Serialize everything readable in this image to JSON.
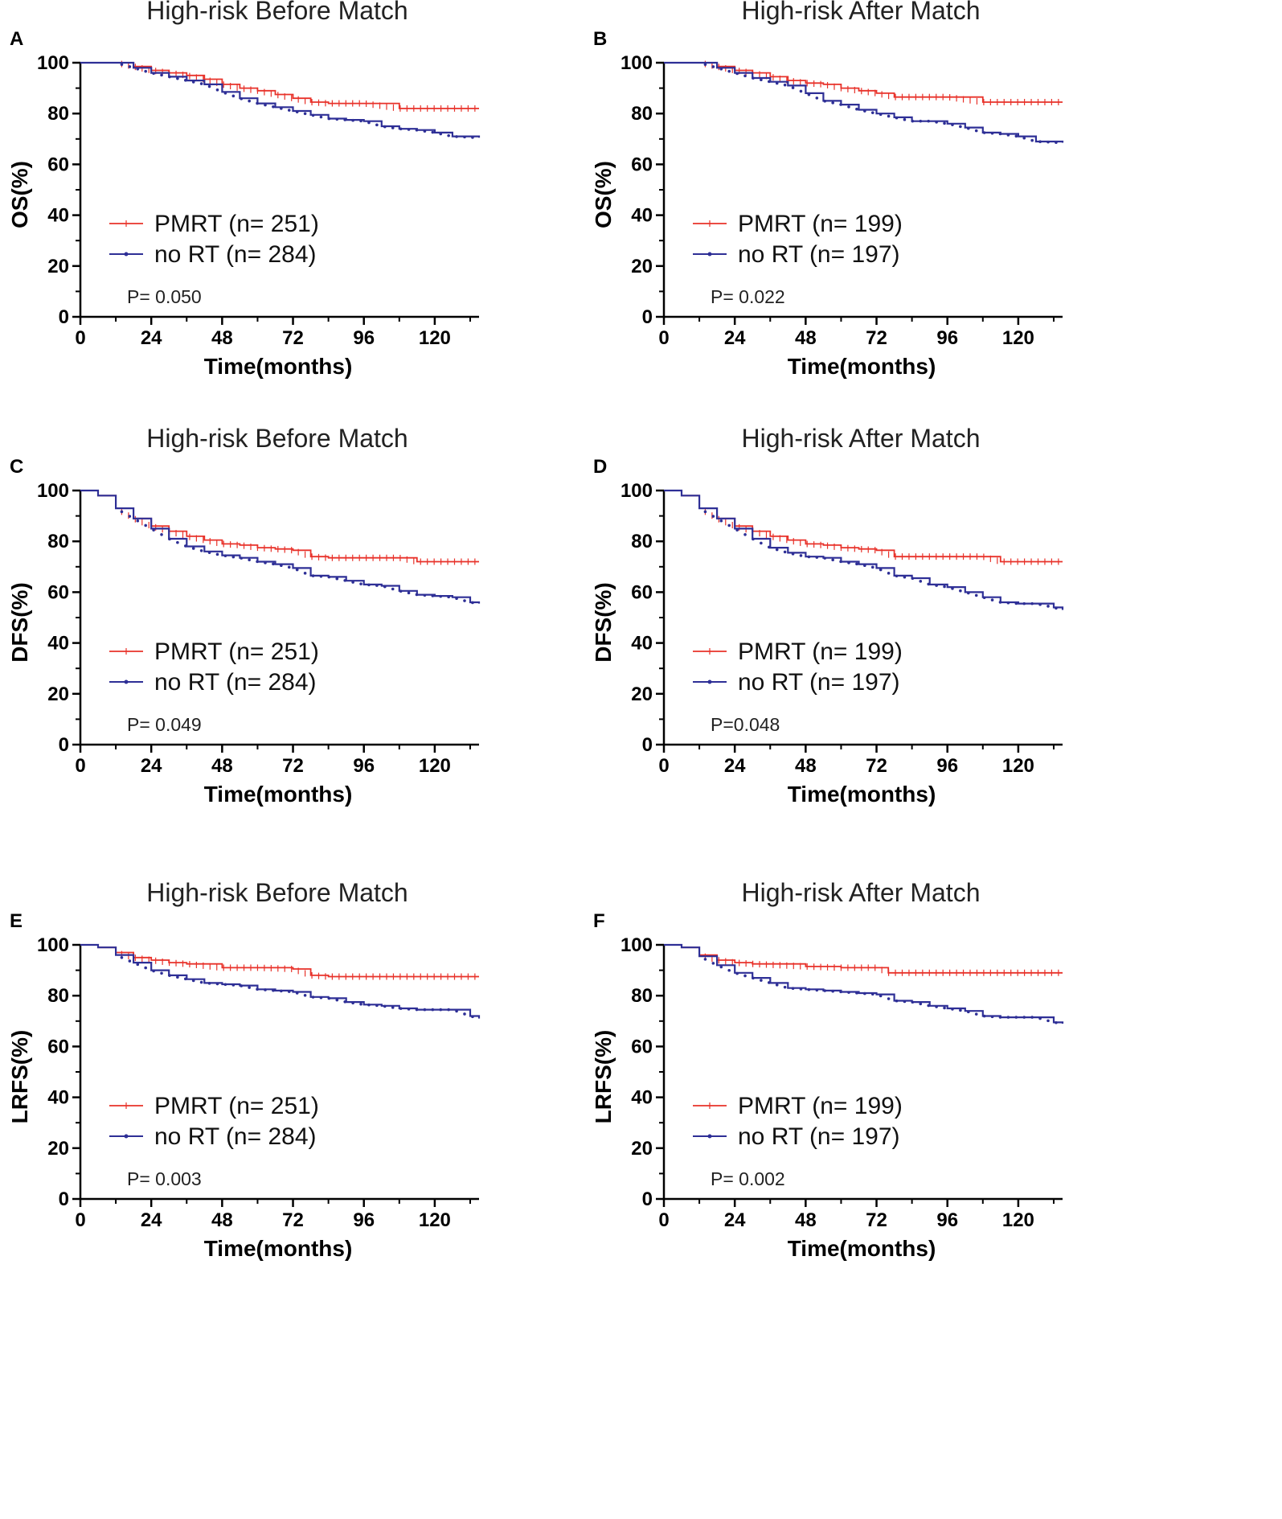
{
  "colors": {
    "pmrt": "#e8322a",
    "no_rt": "#2e2f96",
    "axis": "#000000"
  },
  "chart_data": [
    {
      "type": "line",
      "panel": "A",
      "title": "High-risk Before Match",
      "xlabel": "Time(months)",
      "ylabel": "OS(%)",
      "xlim": [
        0,
        135
      ],
      "ylim": [
        0,
        100
      ],
      "xticks": [
        "0",
        "24",
        "48",
        "72",
        "96",
        "120"
      ],
      "yticks": [
        "0",
        "20",
        "40",
        "60",
        "80",
        "100"
      ],
      "legend": {
        "pmrt": "PMRT (n= 251)",
        "no_rt": "no RT (n= 284)"
      },
      "p_value": "P= 0.050",
      "series": [
        {
          "name": "PMRT (n= 251)",
          "x": [
            0,
            12,
            18,
            24,
            30,
            36,
            42,
            48,
            54,
            60,
            66,
            72,
            78,
            84,
            96,
            108,
            135
          ],
          "y": [
            100,
            100,
            98.5,
            97,
            96,
            95,
            93.5,
            91.5,
            90,
            89,
            87.5,
            86,
            84.5,
            84,
            84,
            82,
            82
          ]
        },
        {
          "name": "no RT (n= 284)",
          "x": [
            0,
            12,
            18,
            24,
            30,
            36,
            42,
            48,
            54,
            60,
            66,
            72,
            78,
            84,
            90,
            96,
            102,
            108,
            114,
            120,
            126,
            135
          ],
          "y": [
            100,
            100,
            98,
            96,
            94.5,
            93,
            91.5,
            88.5,
            86,
            84,
            82.5,
            81,
            79.5,
            78,
            77.5,
            77,
            75,
            74,
            73.5,
            72.5,
            71,
            70.5
          ]
        }
      ]
    },
    {
      "type": "line",
      "panel": "B",
      "title": "High-risk After Match",
      "xlabel": "Time(months)",
      "ylabel": "OS(%)",
      "xlim": [
        0,
        135
      ],
      "ylim": [
        0,
        100
      ],
      "xticks": [
        "0",
        "24",
        "48",
        "72",
        "96",
        "120"
      ],
      "yticks": [
        "0",
        "20",
        "40",
        "60",
        "80",
        "100"
      ],
      "legend": {
        "pmrt": "PMRT (n= 199)",
        "no_rt": "no RT (n= 197)"
      },
      "p_value": "P= 0.022",
      "series": [
        {
          "name": "PMRT (n= 199)",
          "x": [
            0,
            12,
            18,
            24,
            30,
            36,
            42,
            48,
            54,
            60,
            66,
            72,
            78,
            96,
            108,
            135
          ],
          "y": [
            100,
            100,
            98.5,
            97,
            96,
            94.5,
            93,
            92,
            91.5,
            90,
            89,
            88,
            86.5,
            86.5,
            84.5,
            84.5
          ]
        },
        {
          "name": "no RT (n= 197)",
          "x": [
            0,
            12,
            18,
            24,
            30,
            36,
            42,
            48,
            54,
            60,
            66,
            72,
            78,
            84,
            90,
            96,
            102,
            108,
            114,
            120,
            126,
            135
          ],
          "y": [
            100,
            100,
            98,
            96,
            94,
            92.5,
            91,
            88,
            85,
            83.5,
            81.5,
            80,
            78.5,
            77,
            77,
            76,
            74.5,
            72.5,
            72,
            71,
            69,
            68.5
          ]
        }
      ]
    },
    {
      "type": "line",
      "panel": "C",
      "title": "High-risk Before Match",
      "xlabel": "Time(months)",
      "ylabel": "DFS(%)",
      "xlim": [
        0,
        135
      ],
      "ylim": [
        0,
        100
      ],
      "xticks": [
        "0",
        "24",
        "48",
        "72",
        "96",
        "120"
      ],
      "yticks": [
        "0",
        "20",
        "40",
        "60",
        "80",
        "100"
      ],
      "legend": {
        "pmrt": "PMRT (n= 251)",
        "no_rt": "no RT (n= 284)"
      },
      "p_value": "P= 0.049",
      "series": [
        {
          "name": "PMRT (n= 251)",
          "x": [
            0,
            6,
            12,
            18,
            24,
            30,
            36,
            42,
            48,
            54,
            60,
            66,
            72,
            78,
            84,
            96,
            108,
            114,
            135
          ],
          "y": [
            100,
            98,
            93,
            89,
            86,
            84,
            82,
            80.5,
            79,
            78.5,
            77.5,
            77,
            76.5,
            74,
            73.5,
            73.5,
            73.5,
            72,
            72
          ]
        },
        {
          "name": "no RT (n= 284)",
          "x": [
            0,
            6,
            12,
            18,
            24,
            30,
            36,
            42,
            48,
            54,
            60,
            66,
            72,
            78,
            84,
            90,
            96,
            102,
            108,
            114,
            120,
            126,
            132,
            135
          ],
          "y": [
            100,
            98,
            93,
            89,
            85,
            81,
            78,
            76,
            74.5,
            73.5,
            72,
            71,
            69.5,
            66.5,
            66,
            64.5,
            63,
            62.5,
            60.5,
            59,
            58.5,
            58,
            56,
            55.5
          ]
        }
      ]
    },
    {
      "type": "line",
      "panel": "D",
      "title": "High-risk After Match",
      "xlabel": "Time(months)",
      "ylabel": "DFS(%)",
      "xlim": [
        0,
        135
      ],
      "ylim": [
        0,
        100
      ],
      "xticks": [
        "0",
        "24",
        "48",
        "72",
        "96",
        "120"
      ],
      "yticks": [
        "0",
        "20",
        "40",
        "60",
        "80",
        "100"
      ],
      "legend": {
        "pmrt": "PMRT (n= 199)",
        "no_rt": "no RT (n= 197)"
      },
      "p_value": "P=0.048",
      "series": [
        {
          "name": "PMRT (n= 199)",
          "x": [
            0,
            6,
            12,
            18,
            24,
            30,
            36,
            42,
            48,
            54,
            60,
            66,
            72,
            78,
            84,
            96,
            108,
            114,
            135
          ],
          "y": [
            100,
            98,
            93,
            89,
            86,
            84,
            82,
            80.5,
            79,
            78.5,
            77.5,
            77,
            76.5,
            74,
            74,
            74,
            74,
            72,
            72
          ]
        },
        {
          "name": "no RT (n= 197)",
          "x": [
            0,
            6,
            12,
            18,
            24,
            30,
            36,
            42,
            48,
            54,
            60,
            66,
            72,
            78,
            84,
            90,
            96,
            102,
            108,
            114,
            120,
            126,
            132,
            135
          ],
          "y": [
            100,
            98,
            93,
            89,
            85,
            81,
            77.5,
            75.5,
            74,
            73.5,
            72,
            71,
            69.5,
            66.5,
            65.5,
            63,
            62,
            60,
            58,
            56,
            55.5,
            55.5,
            54,
            53
          ]
        }
      ]
    },
    {
      "type": "line",
      "panel": "E",
      "title": "High-risk Before Match",
      "xlabel": "Time(months)",
      "ylabel": "LRFS(%)",
      "xlim": [
        0,
        135
      ],
      "ylim": [
        0,
        100
      ],
      "xticks": [
        "0",
        "24",
        "48",
        "72",
        "96",
        "120"
      ],
      "yticks": [
        "0",
        "20",
        "40",
        "60",
        "80",
        "100"
      ],
      "legend": {
        "pmrt": "PMRT (n= 251)",
        "no_rt": "no RT (n= 284)"
      },
      "p_value": "P= 0.003",
      "series": [
        {
          "name": "PMRT (n= 251)",
          "x": [
            0,
            6,
            12,
            18,
            24,
            30,
            36,
            48,
            60,
            72,
            78,
            84,
            96,
            108,
            120,
            135
          ],
          "y": [
            100,
            99,
            97,
            95,
            94,
            93,
            92.5,
            91,
            91,
            90.5,
            88,
            87.5,
            87.5,
            87.5,
            87.5,
            87.5
          ]
        },
        {
          "name": "no RT (n= 284)",
          "x": [
            0,
            6,
            12,
            18,
            24,
            30,
            36,
            42,
            48,
            54,
            60,
            66,
            72,
            78,
            84,
            90,
            96,
            102,
            108,
            114,
            120,
            126,
            132,
            135
          ],
          "y": [
            100,
            99,
            96,
            93,
            90,
            88,
            86.5,
            85,
            84.5,
            84,
            82.5,
            82,
            81.5,
            79.5,
            79,
            77.5,
            76.5,
            76,
            75,
            74.5,
            74.5,
            74.5,
            72,
            71
          ]
        }
      ]
    },
    {
      "type": "line",
      "panel": "F",
      "title": "High-risk After Match",
      "xlabel": "Time(months)",
      "ylabel": "LRFS(%)",
      "xlim": [
        0,
        135
      ],
      "ylim": [
        0,
        100
      ],
      "xticks": [
        "0",
        "24",
        "48",
        "72",
        "96",
        "120"
      ],
      "yticks": [
        "0",
        "20",
        "40",
        "60",
        "80",
        "100"
      ],
      "legend": {
        "pmrt": "PMRT (n= 199)",
        "no_rt": "no RT (n= 197)"
      },
      "p_value": "P= 0.002",
      "series": [
        {
          "name": "PMRT (n= 199)",
          "x": [
            0,
            6,
            12,
            18,
            24,
            30,
            48,
            60,
            72,
            76,
            84,
            96,
            108,
            120,
            135
          ],
          "y": [
            100,
            99,
            96,
            94,
            93,
            92.5,
            91.5,
            91,
            91,
            89,
            89,
            89,
            89,
            89,
            89
          ]
        },
        {
          "name": "no RT (n= 197)",
          "x": [
            0,
            6,
            12,
            18,
            24,
            30,
            36,
            42,
            48,
            54,
            60,
            66,
            72,
            78,
            84,
            90,
            96,
            102,
            108,
            114,
            120,
            126,
            132,
            135
          ],
          "y": [
            100,
            99,
            95.5,
            92,
            89,
            87,
            85,
            83,
            82.5,
            82,
            81.5,
            81,
            80.5,
            78,
            77.5,
            76,
            75,
            74,
            72,
            71.5,
            71.5,
            71.5,
            69.5,
            69
          ]
        }
      ]
    }
  ]
}
